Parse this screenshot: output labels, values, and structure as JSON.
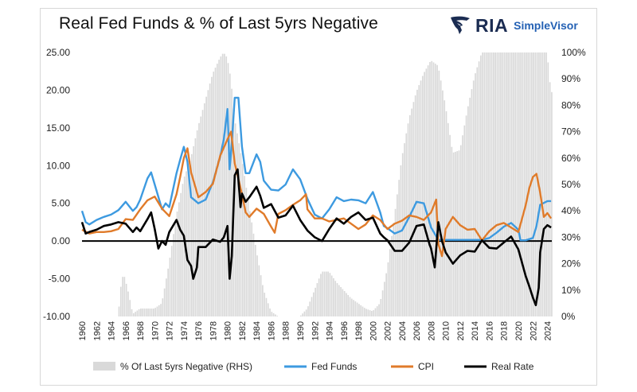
{
  "chart_data": {
    "type": "line",
    "title": "Real Fed Funds & % of Last 5yrs Negative",
    "logo": {
      "brand": "RIA",
      "product": "SimpleVisor",
      "colors": {
        "navy": "#1b2c52",
        "blue": "#2461b4"
      }
    },
    "x_ticks": [
      "1960",
      "1962",
      "1964",
      "1966",
      "1968",
      "1970",
      "1972",
      "1974",
      "1976",
      "1978",
      "1980",
      "1982",
      "1984",
      "1986",
      "1988",
      "1990",
      "1992",
      "1994",
      "1996",
      "1998",
      "2000",
      "2002",
      "2004",
      "2006",
      "2008",
      "2010",
      "2012",
      "2014",
      "2016",
      "2018",
      "2020",
      "2022",
      "2024"
    ],
    "xlim": [
      1960,
      2024.6
    ],
    "left_axis": {
      "ticks": [
        "25.00",
        "20.00",
        "15.00",
        "10.00",
        "5.00",
        "0.00",
        "-5.00",
        "-10.00"
      ],
      "ylim": [
        -10,
        25
      ]
    },
    "right_axis": {
      "ticks": [
        "100%",
        "90%",
        "80%",
        "70%",
        "60%",
        "50%",
        "40%",
        "30%",
        "20%",
        "10%",
        "0%"
      ],
      "ylim": [
        0,
        100
      ]
    },
    "legend_position": "bottom",
    "colors": {
      "area": "#d9d9d9",
      "fed": "#3d9ae0",
      "cpi": "#e07b2a",
      "real": "#000000",
      "zero": "#000000"
    },
    "series": [
      {
        "name": "% Of Last 5yrs Negative (RHS)",
        "axis": "right",
        "kind": "area",
        "x": [
          1960,
          1965,
          1965.5,
          1965.9,
          1966.5,
          1967,
          1968,
          1969,
          1970,
          1971,
          1972,
          1973,
          1974,
          1975,
          1976,
          1977,
          1978,
          1979,
          1979.5,
          1980,
          1980.5,
          1981,
          1982,
          1983,
          1984,
          1985,
          1986,
          1987,
          1988,
          1989,
          1990,
          1991,
          1992,
          1993,
          1994,
          1995,
          1996,
          1997,
          1998,
          1999,
          2000,
          2001,
          2002,
          2003,
          2004,
          2005,
          2006,
          2007,
          2008,
          2009,
          2010,
          2011,
          2012,
          2013,
          2014,
          2015,
          2016,
          2017,
          2018,
          2019,
          2020,
          2021,
          2022,
          2023,
          2024,
          2024.5
        ],
        "values": [
          0,
          0,
          15,
          15,
          8,
          1,
          3,
          3,
          3,
          5,
          20,
          38,
          52,
          60,
          72,
          82,
          92,
          98,
          100,
          98,
          90,
          75,
          60,
          42,
          25,
          10,
          2,
          0,
          0,
          0,
          0,
          3,
          10,
          17,
          17,
          13,
          10,
          7,
          5,
          3,
          2,
          5,
          18,
          38,
          60,
          75,
          85,
          92,
          97,
          95,
          80,
          62,
          63,
          78,
          91,
          100,
          100,
          100,
          100,
          100,
          100,
          100,
          100,
          100,
          100,
          85
        ]
      },
      {
        "name": "Fed Funds",
        "axis": "left",
        "kind": "line",
        "x": [
          1960,
          1960.5,
          1961,
          1962,
          1963,
          1964,
          1965,
          1966,
          1967,
          1967.5,
          1968,
          1969,
          1969.5,
          1970,
          1971,
          1971.5,
          1972,
          1973,
          1973.5,
          1974,
          1974.5,
          1975,
          1976,
          1977,
          1978,
          1979,
          1979.5,
          1980,
          1980.3,
          1980.6,
          1981,
          1981.5,
          1982,
          1982.5,
          1983,
          1984,
          1984.5,
          1985,
          1986,
          1987,
          1988,
          1989,
          1990,
          1991,
          1992,
          1993,
          1994,
          1995,
          1996,
          1997,
          1998,
          1999,
          2000,
          2001,
          2001.5,
          2002,
          2003,
          2004,
          2005,
          2006,
          2007,
          2008,
          2009,
          2010,
          2015,
          2016,
          2017,
          2018,
          2019,
          2020,
          2020.3,
          2021,
          2022,
          2022.5,
          2023,
          2024,
          2024.5
        ],
        "values": [
          4,
          2.5,
          2.2,
          2.8,
          3.2,
          3.5,
          4.1,
          5.2,
          4,
          4.5,
          5.5,
          8.3,
          9.1,
          7.5,
          4.2,
          5,
          4.5,
          9,
          10.8,
          12.5,
          10.5,
          5.8,
          5,
          5.5,
          7.8,
          11.2,
          13.5,
          17.5,
          9.5,
          13,
          19,
          19,
          12.5,
          9,
          9,
          11.5,
          10.5,
          8,
          6.8,
          6.7,
          7.5,
          9.5,
          8.2,
          5.6,
          3.5,
          3,
          4.2,
          5.8,
          5.3,
          5.5,
          5.4,
          5,
          6.5,
          3.8,
          2,
          1.7,
          1,
          1.4,
          3.2,
          5.2,
          5,
          1.8,
          0.15,
          0.15,
          0.15,
          0.4,
          1.1,
          1.9,
          2.4,
          1.5,
          0.1,
          0.1,
          0.4,
          2,
          4.8,
          5.3,
          5.3
        ]
      },
      {
        "name": "CPI",
        "axis": "left",
        "kind": "line",
        "x": [
          1960,
          1961,
          1962,
          1963,
          1964,
          1965,
          1966,
          1967,
          1968,
          1969,
          1970,
          1971,
          1972,
          1973,
          1973.5,
          1974,
          1974.5,
          1975,
          1976,
          1977,
          1978,
          1979,
          1980,
          1980.5,
          1981,
          1982,
          1982.5,
          1983,
          1984,
          1985,
          1986,
          1986.5,
          1987,
          1988,
          1989,
          1990,
          1990.8,
          1991,
          1992,
          1993,
          1994,
          1995,
          1996,
          1997,
          1998,
          1999,
          2000,
          2001,
          2002,
          2003,
          2004,
          2005,
          2006,
          2007,
          2008,
          2008.7,
          2009,
          2009.5,
          2010,
          2011,
          2012,
          2013,
          2014,
          2015,
          2016,
          2017,
          2018,
          2019,
          2020,
          2021,
          2021.5,
          2022,
          2022.5,
          2023,
          2023.5,
          2024,
          2024.5
        ],
        "values": [
          1.5,
          1,
          1.2,
          1.2,
          1.3,
          1.6,
          2.9,
          2.8,
          4.2,
          5.4,
          5.9,
          4.3,
          3.3,
          6.2,
          8.5,
          11,
          12.3,
          9.1,
          5.8,
          6.5,
          7.6,
          11.3,
          13.5,
          14.5,
          10.3,
          6.2,
          3.8,
          3.2,
          4.3,
          3.6,
          1.9,
          1.1,
          3.6,
          4.1,
          4.8,
          5.4,
          6.2,
          4.2,
          3,
          3,
          2.6,
          2.8,
          3,
          2.3,
          1.6,
          2.2,
          3.4,
          2.8,
          1.6,
          2.3,
          2.7,
          3.4,
          3.2,
          2.8,
          3.8,
          5.5,
          -0.4,
          -2,
          1.6,
          3.2,
          2.1,
          1.5,
          1.6,
          0.1,
          1.3,
          2.1,
          2.4,
          1.8,
          1.2,
          4.7,
          7,
          8.5,
          8.9,
          6.4,
          3.2,
          3.7,
          3
        ]
      },
      {
        "name": "Real Rate",
        "axis": "left",
        "kind": "line",
        "x": [
          1960,
          1960.5,
          1961,
          1962,
          1963,
          1964,
          1965,
          1966,
          1967,
          1967.5,
          1968,
          1969,
          1969.5,
          1970,
          1970.5,
          1971,
          1971.5,
          1972,
          1973,
          1973.5,
          1974,
          1974.5,
          1975,
          1975.3,
          1975.8,
          1976,
          1977,
          1978,
          1979,
          1979.5,
          1980,
          1980.3,
          1980.6,
          1981,
          1981.4,
          1981.8,
          1982,
          1982.5,
          1983,
          1984,
          1984.5,
          1985,
          1986,
          1987,
          1988,
          1989,
          1990,
          1991,
          1992,
          1993,
          1994,
          1995,
          1996,
          1997,
          1998,
          1999,
          2000,
          2001,
          2001.5,
          2002,
          2003,
          2004,
          2005,
          2006,
          2007,
          2007.8,
          2008,
          2008.5,
          2009,
          2009.5,
          2010,
          2011,
          2012,
          2013,
          2014,
          2015,
          2016,
          2017,
          2018,
          2019,
          2020,
          2021,
          2021.5,
          2022,
          2022.4,
          2022.8,
          2023,
          2023.5,
          2024,
          2024.5
        ],
        "values": [
          2.5,
          1,
          1.2,
          1.5,
          2,
          2.2,
          2.5,
          2.3,
          1.2,
          1.8,
          1.3,
          2.9,
          3.8,
          1.6,
          -1,
          0,
          -0.5,
          1.2,
          2.8,
          1.5,
          0.7,
          -2.5,
          -3.3,
          -5,
          -3.5,
          -0.8,
          -0.8,
          0.2,
          -0.1,
          0.5,
          2,
          -5,
          -2,
          8.7,
          9.5,
          4.5,
          6.3,
          5.2,
          5.8,
          7.2,
          6,
          4.4,
          4.9,
          3.1,
          3.4,
          4.7,
          2.8,
          1.4,
          0.5,
          0,
          1.6,
          3,
          2.3,
          3.2,
          3.8,
          2.8,
          3.1,
          1,
          0.5,
          0.1,
          -1.3,
          -1.3,
          -0.2,
          2,
          2.2,
          -0.5,
          -1,
          -3.5,
          2.5,
          0,
          -1.5,
          -3,
          -1.9,
          -1.3,
          -1.4,
          0.1,
          -0.9,
          -1,
          -0.2,
          0.6,
          -1.1,
          -4.6,
          -6,
          -7.5,
          -8.5,
          -6.2,
          -1.5,
          1.6,
          2.1,
          1.8
        ]
      }
    ]
  }
}
